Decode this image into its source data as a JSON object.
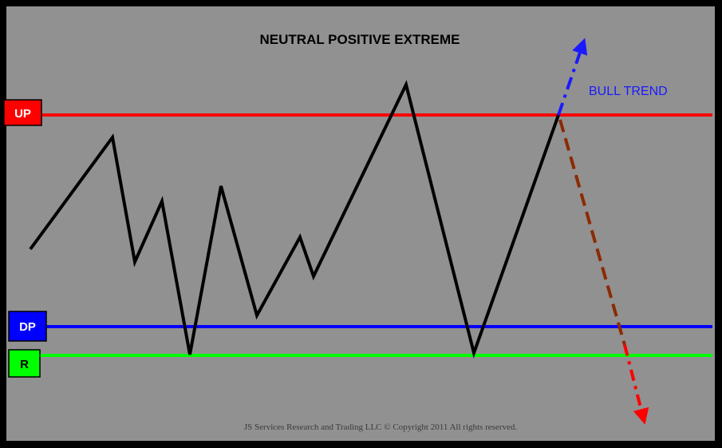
{
  "title": "NEUTRAL POSITIVE EXTREME",
  "annotation": "BULL TREND",
  "footer": "JS Services Research and Trading LLC © Copyright 2011 All rights reserved.",
  "levels": [
    {
      "label": "UP",
      "color": "#ff0000",
      "text_color": "#ffffff"
    },
    {
      "label": "DP",
      "color": "#0000ff",
      "text_color": "#ffffff"
    },
    {
      "label": "R",
      "color": "#00ff00",
      "text_color": "#000000"
    }
  ],
  "colors": {
    "background": "#919191",
    "frame": "#000000",
    "price_path": "#000000",
    "bull_arrow": "#1a1aff",
    "bear_arrow_upper": "#8b2a00",
    "bear_arrow_lower": "#ff0000"
  }
}
